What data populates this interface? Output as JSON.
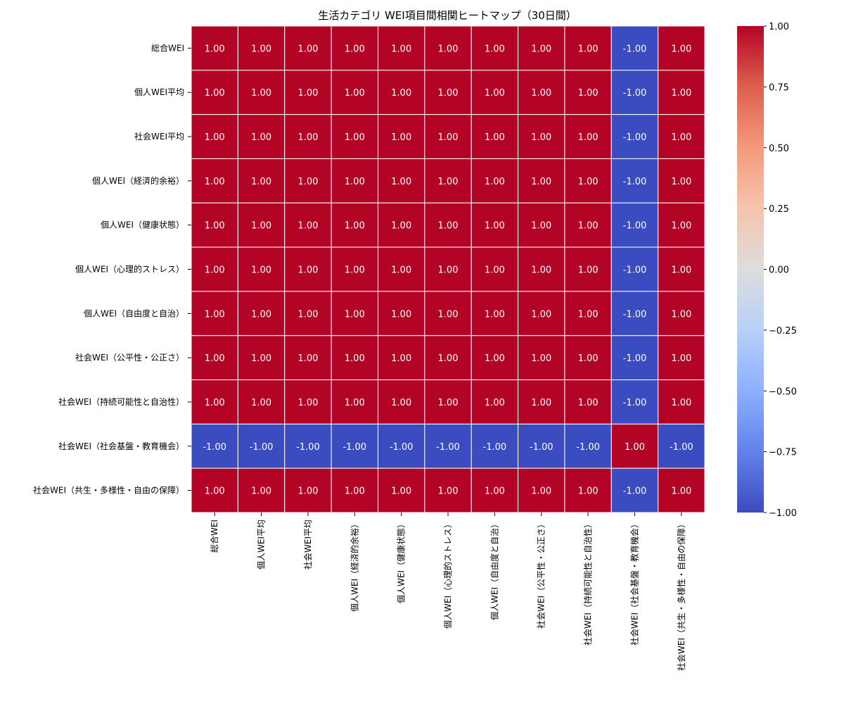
{
  "chart_data": {
    "type": "heatmap",
    "title": "生活カテゴリ WEI項目間相関ヒートマップ（30日間）",
    "xlabel": "",
    "ylabel": "",
    "labels": [
      "総合WEI",
      "個人WEI平均",
      "社会WEI平均",
      "個人WEI（経済的余裕）",
      "個人WEI（健康状態）",
      "個人WEI（心理的ストレス）",
      "個人WEI（自由度と自治）",
      "社会WEI（公平性・公正さ）",
      "社会WEI（持続可能性と自治性）",
      "社会WEI（社会基盤・教育機会）",
      "社会WEI（共生・多様性・自由の保障）"
    ],
    "values": [
      [
        1,
        1,
        1,
        1,
        1,
        1,
        1,
        1,
        1,
        -1,
        1
      ],
      [
        1,
        1,
        1,
        1,
        1,
        1,
        1,
        1,
        1,
        -1,
        1
      ],
      [
        1,
        1,
        1,
        1,
        1,
        1,
        1,
        1,
        1,
        -1,
        1
      ],
      [
        1,
        1,
        1,
        1,
        1,
        1,
        1,
        1,
        1,
        -1,
        1
      ],
      [
        1,
        1,
        1,
        1,
        1,
        1,
        1,
        1,
        1,
        -1,
        1
      ],
      [
        1,
        1,
        1,
        1,
        1,
        1,
        1,
        1,
        1,
        -1,
        1
      ],
      [
        1,
        1,
        1,
        1,
        1,
        1,
        1,
        1,
        1,
        -1,
        1
      ],
      [
        1,
        1,
        1,
        1,
        1,
        1,
        1,
        1,
        1,
        -1,
        1
      ],
      [
        1,
        1,
        1,
        1,
        1,
        1,
        1,
        1,
        1,
        -1,
        1
      ],
      [
        -1,
        -1,
        -1,
        -1,
        -1,
        -1,
        -1,
        -1,
        -1,
        1,
        -1
      ],
      [
        1,
        1,
        1,
        1,
        1,
        1,
        1,
        1,
        1,
        -1,
        1
      ]
    ],
    "value_format": "0.00",
    "colormap": "coolwarm",
    "vmin": -1,
    "vmax": 1,
    "colorbar_ticks": [
      "1.00",
      "0.75",
      "0.50",
      "0.25",
      "0.00",
      "−0.25",
      "−0.50",
      "−0.75",
      "−1.00"
    ],
    "colors": {
      "positive": "#b40426",
      "negative": "#3b4cc0",
      "cell_border": "#ffffff",
      "annotation_text": "#ffffff"
    }
  }
}
